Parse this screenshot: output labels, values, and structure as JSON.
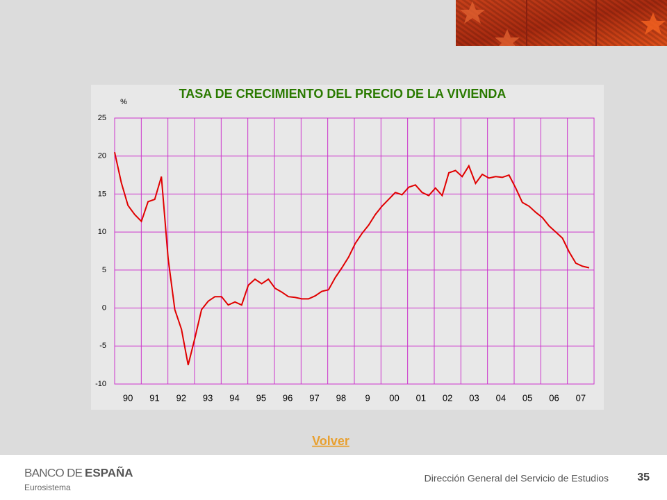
{
  "chart_data": {
    "type": "line",
    "title": "TASA DE CRECIMIENTO DEL PRECIO DE LA VIVIENDA",
    "y_label": "%",
    "categories": [
      null,
      "90",
      null,
      null,
      null,
      "91",
      null,
      null,
      null,
      "92",
      null,
      null,
      null,
      "93",
      null,
      null,
      null,
      "94",
      null,
      null,
      null,
      "95",
      null,
      null,
      null,
      "96",
      null,
      null,
      null,
      "97",
      null,
      null,
      null,
      "98",
      null,
      null,
      null,
      "9",
      null,
      null,
      null,
      "00",
      null,
      null,
      null,
      "01",
      null,
      null,
      null,
      "02",
      null,
      null,
      null,
      "03",
      null,
      null,
      null,
      "04",
      null,
      null,
      null,
      "05",
      null,
      null,
      null,
      "06",
      null,
      null,
      null,
      "07",
      null,
      null
    ],
    "values": [
      20.5,
      16.5,
      13.5,
      12.3,
      11.4,
      14,
      14.3,
      17.3,
      6.5,
      -0.2,
      -2.8,
      -7.5,
      -4,
      -0.2,
      0.9,
      1.5,
      1.5,
      0.4,
      0.8,
      0.4,
      3,
      3.8,
      3.2,
      3.8,
      2.6,
      2.1,
      1.5,
      1.4,
      1.2,
      1.2,
      1.6,
      2.2,
      2.4,
      4,
      5.3,
      6.7,
      8.5,
      9.8,
      10.9,
      12.3,
      13.4,
      14.3,
      15.2,
      14.9,
      15.9,
      16.2,
      15.2,
      14.8,
      15.8,
      14.8,
      17.8,
      18.1,
      17.3,
      18.7,
      16.4,
      17.6,
      17.1,
      17.3,
      17.2,
      17.5,
      15.8,
      13.9,
      13.4,
      12.6,
      11.9,
      10.8,
      10,
      9.2,
      7.4,
      5.9,
      5.5,
      5.3
    ],
    "color": "#e00000",
    "grid_color": "#cc33cc",
    "ylim": [
      -10,
      25
    ],
    "yticks": [
      -10,
      -5,
      0,
      5,
      10,
      15,
      20,
      25
    ],
    "grid": true
  },
  "link": "Volver",
  "footer": {
    "bank_light": "BANCO DE",
    "bank_bold": "ESPAÑA",
    "system": "Eurosistema",
    "department": "Dirección General del Servicio de Estudios",
    "page": "35"
  }
}
